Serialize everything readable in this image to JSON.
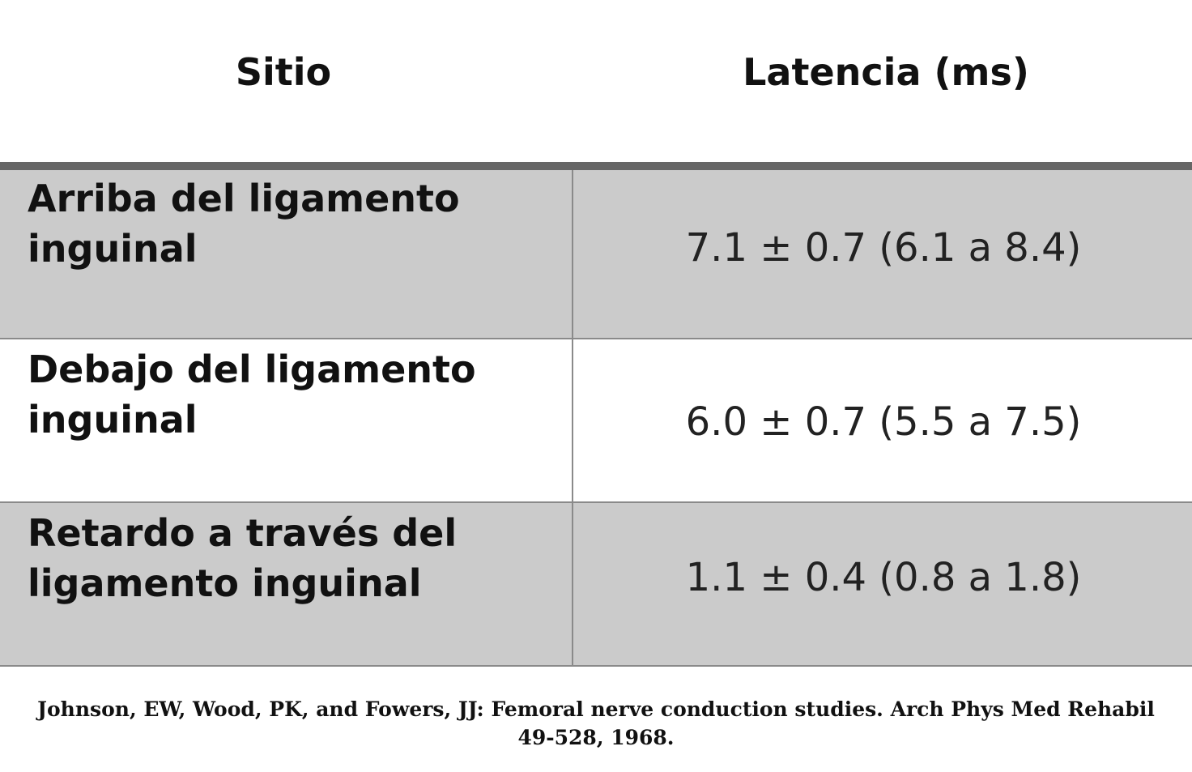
{
  "table": {
    "headers": [
      "Sitio",
      "Latencia (ms)"
    ],
    "rows": [
      {
        "site": "Arriba del ligamento inguinal",
        "latency": "7.1 ± 0.7 (6.1 a 8.4)"
      },
      {
        "site": "Debajo del ligamento inguinal",
        "latency": "6.0 ± 0.7 (5.5 a 7.5)"
      },
      {
        "site": "Retardo a través del ligamento inguinal",
        "latency": "1.1 ± 0.4 (0.8 a 1.8)"
      }
    ],
    "row_fill_colors": [
      "#cbcbcb",
      "#ffffff",
      "#cbcbcb"
    ],
    "header_rule_color": "#666666"
  },
  "citation": {
    "line1": "Johnson, EW, Wood, PK, and Fowers, JJ: Femoral nerve conduction studies. Arch Phys Med Rehabil",
    "line2": "49-528, 1968."
  }
}
